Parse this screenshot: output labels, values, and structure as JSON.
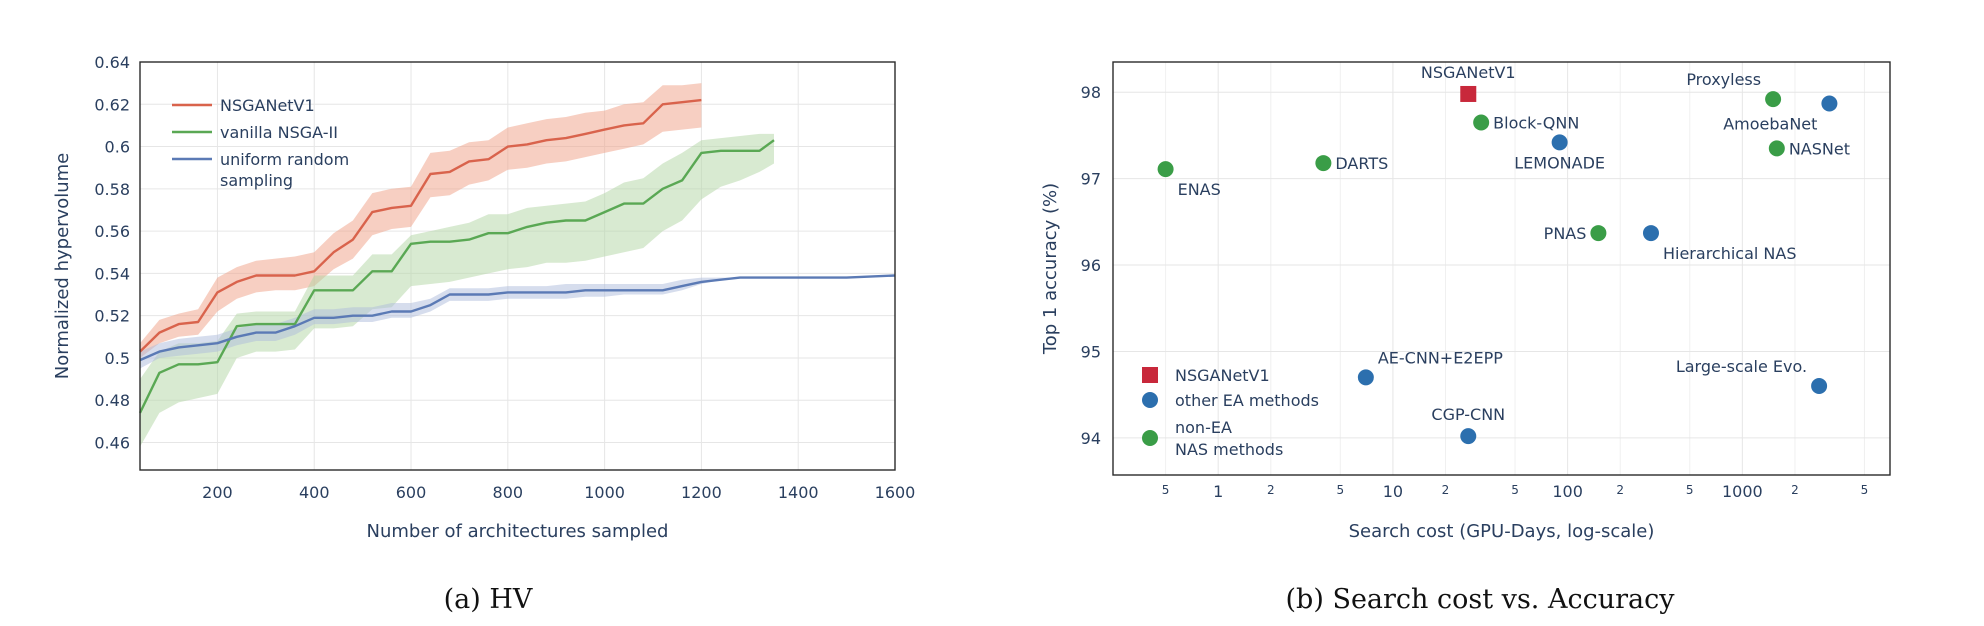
{
  "chart_data": [
    {
      "type": "line",
      "caption": "(a) HV",
      "xlabel": "Number of architectures sampled",
      "ylabel": "Normalized hypervolume",
      "xlim": [
        40,
        1600
      ],
      "ylim": [
        0.447,
        0.64
      ],
      "x_ticks": [
        200,
        400,
        600,
        800,
        1000,
        1200,
        1400,
        1600
      ],
      "x_tick_labels": [
        "200",
        "400",
        "600",
        "800",
        "1000",
        "1200",
        "1400",
        "1600"
      ],
      "y_ticks": [
        0.46,
        0.48,
        0.5,
        0.52,
        0.54,
        0.56,
        0.58,
        0.6,
        0.62,
        0.64
      ],
      "y_tick_labels": [
        "0.46",
        "0.48",
        "0.5",
        "0.52",
        "0.54",
        "0.56",
        "0.58",
        "0.6",
        "0.62",
        "0.64"
      ],
      "legend_position": "top-left",
      "series": [
        {
          "name": "NSGANetV1",
          "color": "#d9634c",
          "band_color": "#ef9f86",
          "x": [
            40,
            80,
            120,
            160,
            200,
            240,
            280,
            320,
            360,
            400,
            440,
            480,
            520,
            560,
            600,
            640,
            680,
            720,
            760,
            800,
            840,
            880,
            920,
            960,
            1000,
            1040,
            1080,
            1120,
            1160,
            1200
          ],
          "values": [
            0.503,
            0.512,
            0.516,
            0.517,
            0.531,
            0.536,
            0.539,
            0.539,
            0.539,
            0.541,
            0.55,
            0.556,
            0.569,
            0.571,
            0.572,
            0.587,
            0.588,
            0.593,
            0.594,
            0.6,
            0.601,
            0.603,
            0.604,
            0.606,
            0.608,
            0.61,
            0.611,
            0.62,
            0.621,
            0.622
          ],
          "lower": [
            0.5,
            0.507,
            0.51,
            0.511,
            0.522,
            0.528,
            0.531,
            0.532,
            0.532,
            0.534,
            0.542,
            0.547,
            0.558,
            0.561,
            0.562,
            0.576,
            0.577,
            0.582,
            0.584,
            0.589,
            0.59,
            0.592,
            0.593,
            0.595,
            0.597,
            0.599,
            0.601,
            0.607,
            0.608,
            0.609
          ],
          "upper": [
            0.507,
            0.518,
            0.521,
            0.523,
            0.538,
            0.543,
            0.546,
            0.547,
            0.548,
            0.55,
            0.559,
            0.565,
            0.578,
            0.58,
            0.581,
            0.597,
            0.598,
            0.602,
            0.603,
            0.609,
            0.611,
            0.613,
            0.614,
            0.616,
            0.617,
            0.62,
            0.621,
            0.629,
            0.629,
            0.63
          ]
        },
        {
          "name": "vanilla NSGA-II",
          "color": "#5aa854",
          "band_color": "#b2d5a3",
          "x": [
            40,
            80,
            120,
            160,
            200,
            240,
            280,
            320,
            360,
            400,
            440,
            480,
            520,
            560,
            600,
            640,
            680,
            720,
            760,
            800,
            840,
            880,
            920,
            960,
            1000,
            1040,
            1080,
            1120,
            1160,
            1200,
            1240,
            1280,
            1320,
            1350
          ],
          "values": [
            0.474,
            0.493,
            0.497,
            0.497,
            0.498,
            0.515,
            0.516,
            0.516,
            0.516,
            0.532,
            0.532,
            0.532,
            0.541,
            0.541,
            0.554,
            0.555,
            0.555,
            0.556,
            0.559,
            0.559,
            0.562,
            0.564,
            0.565,
            0.565,
            0.569,
            0.573,
            0.573,
            0.58,
            0.584,
            0.597,
            0.598,
            0.598,
            0.598,
            0.603
          ],
          "lower": [
            0.458,
            0.474,
            0.479,
            0.481,
            0.483,
            0.5,
            0.503,
            0.503,
            0.504,
            0.514,
            0.514,
            0.515,
            0.523,
            0.524,
            0.534,
            0.535,
            0.536,
            0.538,
            0.54,
            0.542,
            0.543,
            0.545,
            0.545,
            0.546,
            0.548,
            0.55,
            0.552,
            0.56,
            0.565,
            0.575,
            0.581,
            0.584,
            0.588,
            0.592
          ],
          "upper": [
            0.49,
            0.503,
            0.507,
            0.507,
            0.508,
            0.521,
            0.522,
            0.522,
            0.522,
            0.539,
            0.539,
            0.539,
            0.549,
            0.549,
            0.558,
            0.56,
            0.562,
            0.564,
            0.568,
            0.568,
            0.571,
            0.572,
            0.573,
            0.574,
            0.578,
            0.583,
            0.585,
            0.592,
            0.597,
            0.603,
            0.604,
            0.605,
            0.606,
            0.606
          ]
        },
        {
          "name": "uniform random sampling",
          "name_lines": [
            "uniform random",
            "sampling"
          ],
          "color": "#5b7ab5",
          "band_color": "#aebcdb",
          "x": [
            40,
            80,
            120,
            160,
            200,
            240,
            280,
            320,
            360,
            400,
            440,
            480,
            520,
            560,
            600,
            640,
            680,
            720,
            760,
            800,
            840,
            880,
            920,
            960,
            1000,
            1040,
            1080,
            1120,
            1160,
            1200,
            1240,
            1280,
            1320,
            1400,
            1500,
            1600
          ],
          "values": [
            0.499,
            0.503,
            0.505,
            0.506,
            0.507,
            0.51,
            0.512,
            0.512,
            0.515,
            0.519,
            0.519,
            0.52,
            0.52,
            0.522,
            0.522,
            0.525,
            0.53,
            0.53,
            0.53,
            0.531,
            0.531,
            0.531,
            0.531,
            0.532,
            0.532,
            0.532,
            0.532,
            0.532,
            0.534,
            0.536,
            0.537,
            0.538,
            0.538,
            0.538,
            0.538,
            0.539
          ],
          "lower": [
            0.495,
            0.5,
            0.501,
            0.502,
            0.503,
            0.506,
            0.508,
            0.508,
            0.511,
            0.516,
            0.516,
            0.517,
            0.517,
            0.519,
            0.519,
            0.522,
            0.527,
            0.527,
            0.527,
            0.528,
            0.528,
            0.528,
            0.528,
            0.529,
            0.529,
            0.53,
            0.53,
            0.53,
            0.532,
            0.535,
            0.537,
            0.538,
            0.538,
            0.538,
            0.538,
            0.539
          ],
          "upper": [
            0.503,
            0.507,
            0.509,
            0.51,
            0.511,
            0.514,
            0.516,
            0.516,
            0.519,
            0.523,
            0.523,
            0.524,
            0.524,
            0.526,
            0.526,
            0.528,
            0.533,
            0.533,
            0.533,
            0.534,
            0.534,
            0.534,
            0.535,
            0.535,
            0.535,
            0.535,
            0.535,
            0.535,
            0.537,
            0.538,
            0.538,
            0.538,
            0.538,
            0.538,
            0.538,
            0.539
          ]
        }
      ]
    },
    {
      "type": "scatter",
      "caption": "(b) Search cost vs. Accuracy",
      "xlabel": "Search cost (GPU-Days, log-scale)",
      "ylabel": "Top 1 accuracy (%)",
      "x_scale": "log",
      "xlim": [
        0.25,
        7000
      ],
      "ylim": [
        93.57,
        98.35
      ],
      "y_ticks": [
        94,
        95,
        96,
        97,
        98
      ],
      "y_tick_labels": [
        "94",
        "95",
        "96",
        "97",
        "98"
      ],
      "x_major_ticks": [
        1,
        10,
        100,
        1000
      ],
      "x_major_labels": [
        "1",
        "10",
        "100",
        "1000"
      ],
      "x_minor_ticks": [
        0.5,
        2,
        5,
        20,
        50,
        200,
        500,
        2000,
        5000
      ],
      "x_minor_labels": [
        "5",
        "2",
        "5",
        "2",
        "5",
        "2",
        "5",
        "2",
        "5"
      ],
      "legend_position": "bottom-left",
      "legend": [
        {
          "name": "NSGANetV1",
          "lines": [
            "NSGANetV1"
          ],
          "color": "#c8283b",
          "marker": "square"
        },
        {
          "name": "other EA methods",
          "lines": [
            "other EA methods"
          ],
          "color": "#2c6fae",
          "marker": "circle"
        },
        {
          "name": "non-EA NAS methods",
          "lines": [
            "non-EA",
            "NAS methods"
          ],
          "color": "#3a9d47",
          "marker": "circle"
        }
      ],
      "points": [
        {
          "label": "NSGANetV1",
          "x": 27,
          "y": 97.98,
          "group": "NSGANetV1",
          "label_pos": "above"
        },
        {
          "label": "Block-QNN",
          "x": 32,
          "y": 97.65,
          "group": "non-EA NAS methods",
          "label_pos": "right"
        },
        {
          "label": "LEMONADE",
          "x": 90,
          "y": 97.42,
          "group": "other EA methods",
          "label_pos": "below"
        },
        {
          "label": "ENAS",
          "x": 0.5,
          "y": 97.11,
          "group": "non-EA NAS methods",
          "label_pos": "below-right"
        },
        {
          "label": "DARTS",
          "x": 4,
          "y": 97.18,
          "group": "non-EA NAS methods",
          "label_pos": "right"
        },
        {
          "label": "Proxyless",
          "x": 1500,
          "y": 97.92,
          "group": "non-EA NAS methods",
          "label_pos": "above-left"
        },
        {
          "label": "AmoebaNet",
          "x": 3150,
          "y": 97.87,
          "group": "other EA methods",
          "label_pos": "below-left"
        },
        {
          "label": "NASNet",
          "x": 1575,
          "y": 97.35,
          "group": "non-EA NAS methods",
          "label_pos": "right"
        },
        {
          "label": "PNAS",
          "x": 150,
          "y": 96.37,
          "group": "non-EA NAS methods",
          "label_pos": "left"
        },
        {
          "label": "Hierarchical NAS",
          "x": 300,
          "y": 96.37,
          "group": "other EA methods",
          "label_pos": "below-right"
        },
        {
          "label": "AE-CNN+E2EPP",
          "x": 7,
          "y": 94.7,
          "group": "other EA methods",
          "label_pos": "above-right"
        },
        {
          "label": "CGP-CNN",
          "x": 27,
          "y": 94.02,
          "group": "other EA methods",
          "label_pos": "above"
        },
        {
          "label": "Large-scale Evo.",
          "x": 2750,
          "y": 94.6,
          "group": "other EA methods",
          "label_pos": "above-left"
        }
      ]
    }
  ]
}
